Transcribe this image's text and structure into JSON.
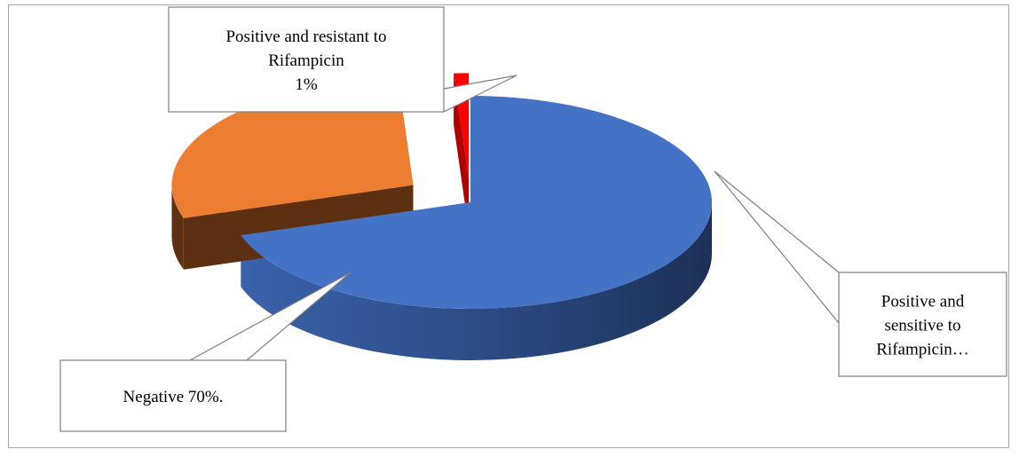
{
  "chart_data": {
    "type": "pie",
    "style": "3d-exploded",
    "title": "",
    "categories": [
      "Negative",
      "Positive and sensitive to Rifampicin",
      "Positive and resistant to Rifampicin"
    ],
    "values": [
      70,
      29,
      1
    ],
    "unit": "%",
    "colors": [
      "#4472c4",
      "#ed7d31",
      "#ff0000"
    ],
    "side_colors": [
      "#2e4f8f",
      "#5e3012",
      "#b00000"
    ],
    "data_labels": [
      {
        "lines": [
          "Negative 70%."
        ]
      },
      {
        "lines": [
          "Positive and",
          "sensitive to",
          "Rifampicin…"
        ]
      },
      {
        "lines": [
          "Positive and resistant to",
          "Rifampicin",
          "1%"
        ]
      }
    ],
    "legend": "none"
  }
}
